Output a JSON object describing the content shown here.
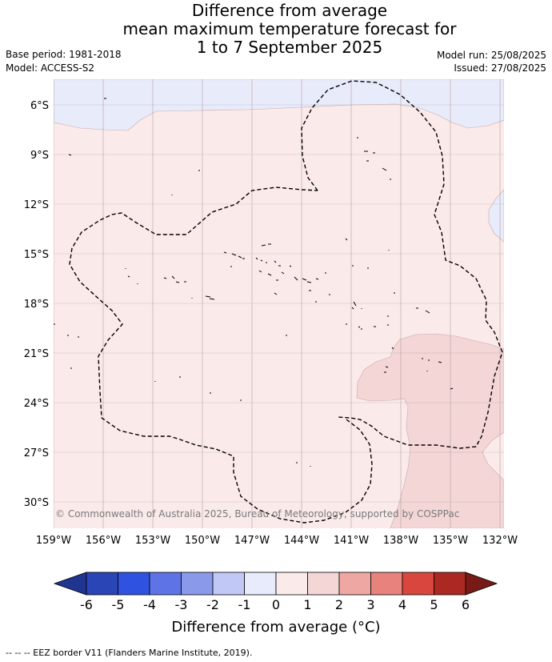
{
  "header": {
    "title_line1": "Difference from average",
    "title_line2": "mean maximum temperature forecast for",
    "title_line3": "1 to 7 September 2025",
    "base_period": "Base period: 1981-2018",
    "model": "Model: ACCESS-S2",
    "model_run": "Model run: 25/08/2025",
    "issued": "Issued: 27/08/2025"
  },
  "map": {
    "lat_labels": [
      "6°S",
      "9°S",
      "12°S",
      "15°S",
      "18°S",
      "21°S",
      "24°S",
      "27°S",
      "30°S"
    ],
    "lon_labels": [
      "159°W",
      "156°W",
      "153°W",
      "150°W",
      "147°W",
      "144°W",
      "141°W",
      "138°W",
      "135°W",
      "132°W"
    ],
    "copyright": "© Commonwealth of Australia 2025, Bureau of Meteorology, supported by COSPPac",
    "colors": {
      "cool_band": "#e8ebfa",
      "warm_0_1": "#fbeaea",
      "warm_1_2": "#f4d6d6",
      "grid": "#8a8a8a"
    }
  },
  "legend": {
    "tick_labels": [
      "-6",
      "-5",
      "-4",
      "-3",
      "-2",
      "-1",
      "0",
      "1",
      "2",
      "3",
      "4",
      "5",
      "6"
    ],
    "colors": [
      "#1f3590",
      "#2a45b5",
      "#3052e0",
      "#5e74e6",
      "#8b99ea",
      "#c2c8f5",
      "#e8ebfb",
      "#fbeaea",
      "#f4d6d6",
      "#eea7a3",
      "#e7827c",
      "#d9463d",
      "#ab2823",
      "#781b17"
    ],
    "title": "Difference from average (°C)"
  },
  "footnote": "-- -- -- EEZ border V11 (Flanders Marine Institute, 2019)."
}
